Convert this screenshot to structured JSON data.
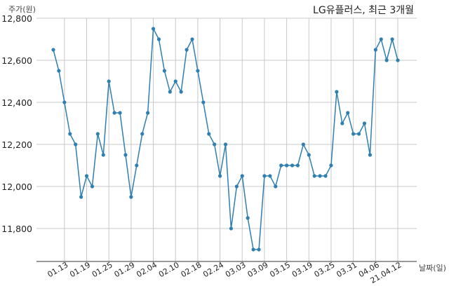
{
  "chart_data": {
    "type": "line",
    "title": "LG유플러스, 최근 3개월",
    "ylabel": "주가(원)",
    "xlabel": "날짜(일)",
    "ylim": [
      11650,
      12800
    ],
    "grid": true,
    "yticks": [
      11800,
      12000,
      12200,
      12400,
      12600,
      12800
    ],
    "ytick_labels": [
      "11,800",
      "12,000",
      "12,200",
      "12,400",
      "12,600",
      "12,800"
    ],
    "xtick_labels": [
      "01.13",
      "01.19",
      "01.25",
      "01.29",
      "02.04",
      "02.10",
      "02.18",
      "02.24",
      "03.03",
      "03.09",
      "03.15",
      "03.19",
      "03.25",
      "03.31",
      "04.06",
      "21.04.12"
    ],
    "xtick_positions": [
      2,
      6,
      10,
      14,
      18,
      22,
      26,
      30,
      34,
      38,
      42,
      46,
      50,
      54,
      58,
      62
    ],
    "colors": {
      "line": "#2f7fb0",
      "grid": "#c8c8c8"
    },
    "series": [
      {
        "values": [
          12650,
          12550,
          12400,
          12250,
          12200,
          11950,
          12050,
          12000,
          12250,
          12150,
          12500,
          12350,
          12350,
          12150,
          11950,
          12100,
          12250,
          12350,
          12750,
          12700,
          12550,
          12450,
          12500,
          12450,
          12650,
          12700,
          12550,
          12400,
          12250,
          12200,
          12050,
          12200,
          11800,
          12000,
          12050,
          11850,
          11700,
          11700,
          12050,
          12050,
          12000,
          12100,
          12100,
          12100,
          12100,
          12200,
          12150,
          12050,
          12050,
          12050,
          12100,
          12450,
          12300,
          12350,
          12250,
          12250,
          12300,
          12150,
          12650,
          12700,
          12600,
          12700,
          12600
        ]
      }
    ]
  }
}
